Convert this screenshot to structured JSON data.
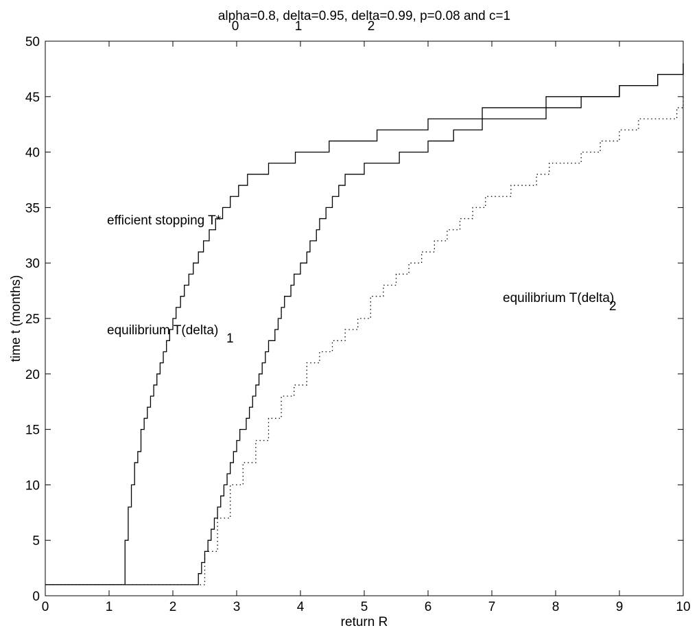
{
  "chart_data": {
    "type": "line",
    "title": "alpha=0.8, delta=0.95, delta=0.99, p=0.08 and c=1",
    "title_subscripts": [
      "0",
      "1",
      "2"
    ],
    "xlabel": "return R",
    "ylabel": "time t (months)",
    "xlim": [
      0,
      10
    ],
    "ylim": [
      0,
      50
    ],
    "xticks": [
      0,
      1,
      2,
      3,
      4,
      5,
      6,
      7,
      8,
      9,
      10
    ],
    "yticks": [
      0,
      5,
      10,
      15,
      20,
      25,
      30,
      35,
      40,
      45,
      50
    ],
    "grid": false,
    "legend": "none",
    "annotations": [
      {
        "text": "efficient stopping T*",
        "subscript": ""
      },
      {
        "text": "equilibrium T(delta",
        "subscript": "1",
        "suffix": ")"
      },
      {
        "text": "equilibrium T(delta",
        "subscript": "2",
        "suffix": ")"
      }
    ],
    "series": [
      {
        "style": "solid",
        "color": "#000000",
        "x": [
          0,
          1.2,
          1.25,
          1.3,
          1.35,
          1.4,
          1.45,
          1.5,
          1.55,
          1.6,
          1.65,
          1.7,
          1.75,
          1.8,
          1.85,
          1.9,
          1.95,
          2.0,
          2.05,
          2.12,
          2.18,
          2.25,
          2.32,
          2.4,
          2.48,
          2.57,
          2.67,
          2.78,
          2.9,
          3.03,
          3.17,
          3.33,
          3.5,
          3.7,
          3.92,
          4.17,
          4.45,
          4.8,
          5.2,
          5.6,
          6.0,
          6.4,
          6.85,
          7.35,
          7.85,
          8.4,
          9.0,
          9.6,
          10
        ],
        "y": [
          1,
          1,
          5,
          8,
          10,
          12,
          13,
          15,
          16,
          17,
          18,
          19,
          20,
          21,
          22,
          23,
          24,
          25,
          26,
          27,
          28,
          29,
          30,
          31,
          32,
          33,
          34,
          35,
          36,
          37,
          38,
          38,
          39,
          39,
          40,
          40,
          41,
          41,
          42,
          42,
          43,
          43,
          44,
          44,
          45,
          45,
          46,
          47,
          48
        ]
      },
      {
        "style": "solid",
        "color": "#000000",
        "x": [
          0,
          2.35,
          2.4,
          2.45,
          2.5,
          2.55,
          2.6,
          2.65,
          2.7,
          2.75,
          2.8,
          2.85,
          2.9,
          2.95,
          3.0,
          3.05,
          3.1,
          3.15,
          3.2,
          3.25,
          3.3,
          3.35,
          3.4,
          3.45,
          3.5,
          3.55,
          3.6,
          3.65,
          3.7,
          3.75,
          3.8,
          3.85,
          3.9,
          3.95,
          4.0,
          4.05,
          4.1,
          4.15,
          4.2,
          4.25,
          4.3,
          4.35,
          4.4,
          4.45,
          4.5,
          4.55,
          4.6,
          4.65,
          4.7,
          4.8,
          4.9,
          5.0,
          5.1,
          5.2,
          5.55,
          6.0,
          6.4,
          6.85,
          7.35,
          7.85,
          8.4,
          9.0,
          9.6,
          10
        ],
        "y": [
          1,
          1,
          2,
          3,
          4,
          5,
          6,
          7,
          8,
          9,
          10,
          11,
          12,
          13,
          14,
          15,
          15,
          16,
          17,
          18,
          19,
          20,
          21,
          22,
          23,
          23,
          24,
          25,
          26,
          27,
          27,
          28,
          29,
          29,
          30,
          30,
          31,
          32,
          32,
          33,
          34,
          34,
          35,
          35,
          36,
          36,
          37,
          37,
          38,
          38,
          38,
          39,
          39,
          39,
          40,
          41,
          42,
          43,
          43,
          44,
          45,
          46,
          47,
          48
        ]
      },
      {
        "style": "dotted",
        "color": "#000000",
        "x": [
          0,
          2.35,
          2.5,
          2.7,
          2.9,
          3.1,
          3.3,
          3.5,
          3.7,
          3.9,
          4.1,
          4.3,
          4.5,
          4.7,
          4.9,
          5.1,
          5.3,
          5.5,
          5.7,
          5.9,
          6.1,
          6.3,
          6.5,
          6.7,
          6.9,
          7.1,
          7.3,
          7.5,
          7.7,
          7.9,
          8.1,
          8.4,
          8.7,
          9.0,
          9.3,
          9.6,
          9.9,
          10
        ],
        "y": [
          1,
          1,
          4,
          7,
          10,
          12,
          14,
          16,
          18,
          19,
          21,
          22,
          23,
          24,
          25,
          27,
          28,
          29,
          30,
          31,
          32,
          33,
          34,
          35,
          36,
          36,
          37,
          37,
          38,
          39,
          39,
          40,
          41,
          42,
          43,
          43,
          44,
          45
        ]
      }
    ]
  }
}
